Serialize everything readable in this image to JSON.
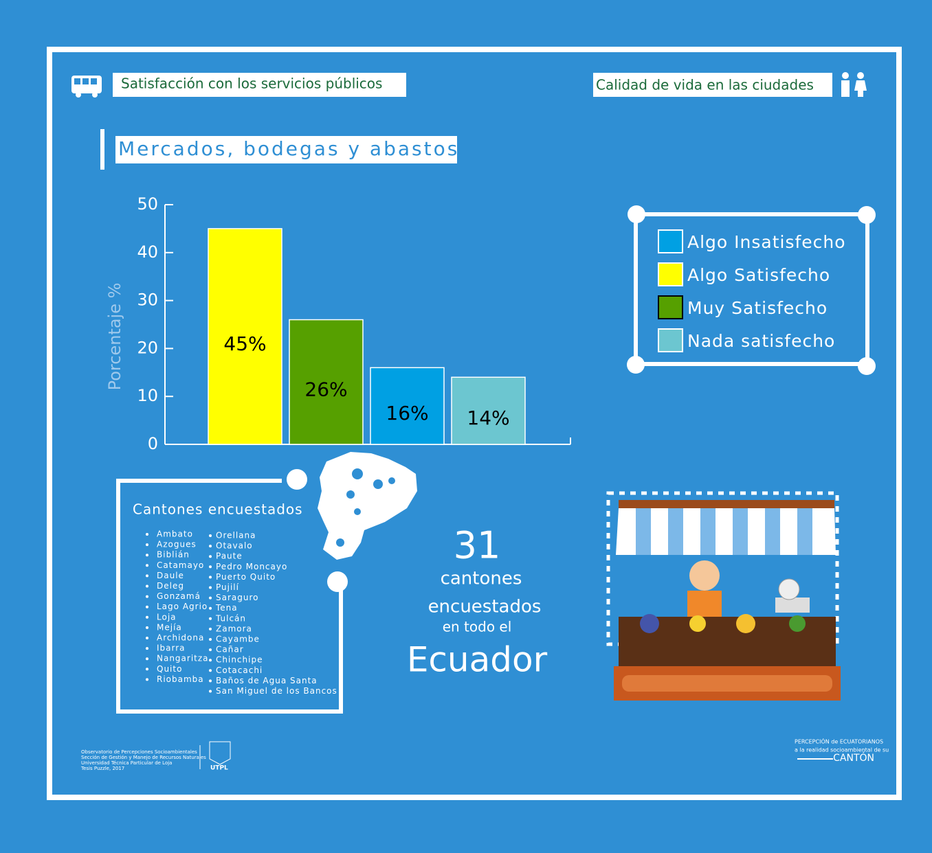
{
  "header": {
    "left": "Satisfacción con los servicios públicos",
    "right": "Calidad de vida en las ciudades"
  },
  "section_title": "Mercados, bodegas y abastos",
  "chart_data": {
    "type": "bar",
    "ylabel": "Porcentaje %",
    "categories": [
      "Algo Satisfecho",
      "Muy Satisfecho",
      "Algo Insatisfecho",
      "Nada satisfecho"
    ],
    "values": [
      45,
      26,
      16,
      14
    ],
    "value_labels": [
      "45%",
      "26%",
      "16%",
      "14%"
    ],
    "colors": [
      "#ffff00",
      "#56a000",
      "#00a0e3",
      "#6cc6d0"
    ],
    "ylim": [
      0,
      50
    ],
    "yticks": [
      0,
      10,
      20,
      30,
      40,
      50
    ]
  },
  "cantones": {
    "title": "Cantones encuestados",
    "col1": [
      "Ambato",
      "Azogues",
      "Biblián",
      "Catamayo",
      "Daule",
      "Deleg",
      "Gonzamá",
      "Lago Agrio",
      "Loja",
      "Mejía",
      "Archidona",
      "Ibarra",
      "Nangaritza",
      "Quito",
      "Riobamba"
    ],
    "col2": [
      "Orellana",
      "Otavalo",
      "Paute",
      "Pedro Moncayo",
      "Puerto Quito",
      "Pujilí",
      "Saraguro",
      "Tena",
      "Tulcán",
      "Zamora",
      "Cayambe",
      "Cañar",
      "Chinchipe",
      "Cotacachi",
      "Baños de Agua Santa",
      "San Miguel de los Bancos"
    ]
  },
  "summary": {
    "number": "31",
    "line1": "cantones",
    "line2": "encuestados",
    "line3": "en todo el",
    "country": "Ecuador"
  },
  "footer": {
    "left": [
      "Observatorio de Percepciones Socioambientales",
      "Sección de Gestión y Manejo de Recursos Naturales",
      "Universidad Técnica Particular de Loja",
      "Tesis Puzzle, 2017"
    ],
    "logo": "UTPL",
    "right": [
      "PERCEPCIÓN de ECUATORIANOS",
      "a la realidad socioambiental de su",
      "CANTÓN"
    ]
  }
}
